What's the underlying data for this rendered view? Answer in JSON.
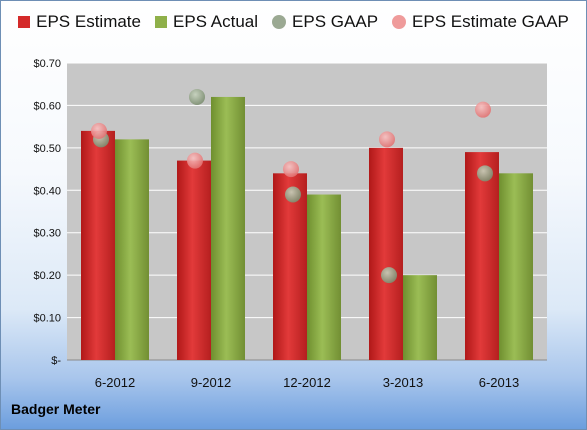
{
  "chart_data": {
    "type": "bar",
    "categories": [
      "6-2012",
      "9-2012",
      "12-2012",
      "3-2013",
      "6-2013"
    ],
    "series": [
      {
        "name": "EPS Estimate",
        "kind": "bar",
        "color": "#d42a2a",
        "values": [
          0.54,
          0.47,
          0.44,
          0.5,
          0.49
        ]
      },
      {
        "name": "EPS Actual",
        "kind": "bar",
        "color": "#8fb04a",
        "values": [
          0.52,
          0.62,
          0.39,
          0.2,
          0.44
        ]
      },
      {
        "name": "EPS GAAP",
        "kind": "marker",
        "color": "#8a9a80",
        "values": [
          0.52,
          0.62,
          0.39,
          0.2,
          0.44
        ]
      },
      {
        "name": "EPS Estimate GAAP",
        "kind": "marker",
        "color": "#ec8a8a",
        "values": [
          0.54,
          0.47,
          0.45,
          0.52,
          0.59
        ]
      }
    ],
    "ylim": [
      0,
      0.7
    ],
    "yticks": [
      "$-",
      "$0.10",
      "$0.20",
      "$0.30",
      "$0.40",
      "$0.50",
      "$0.60",
      "$0.70"
    ],
    "grid": true,
    "legend_position": "top"
  },
  "company": "Badger Meter"
}
